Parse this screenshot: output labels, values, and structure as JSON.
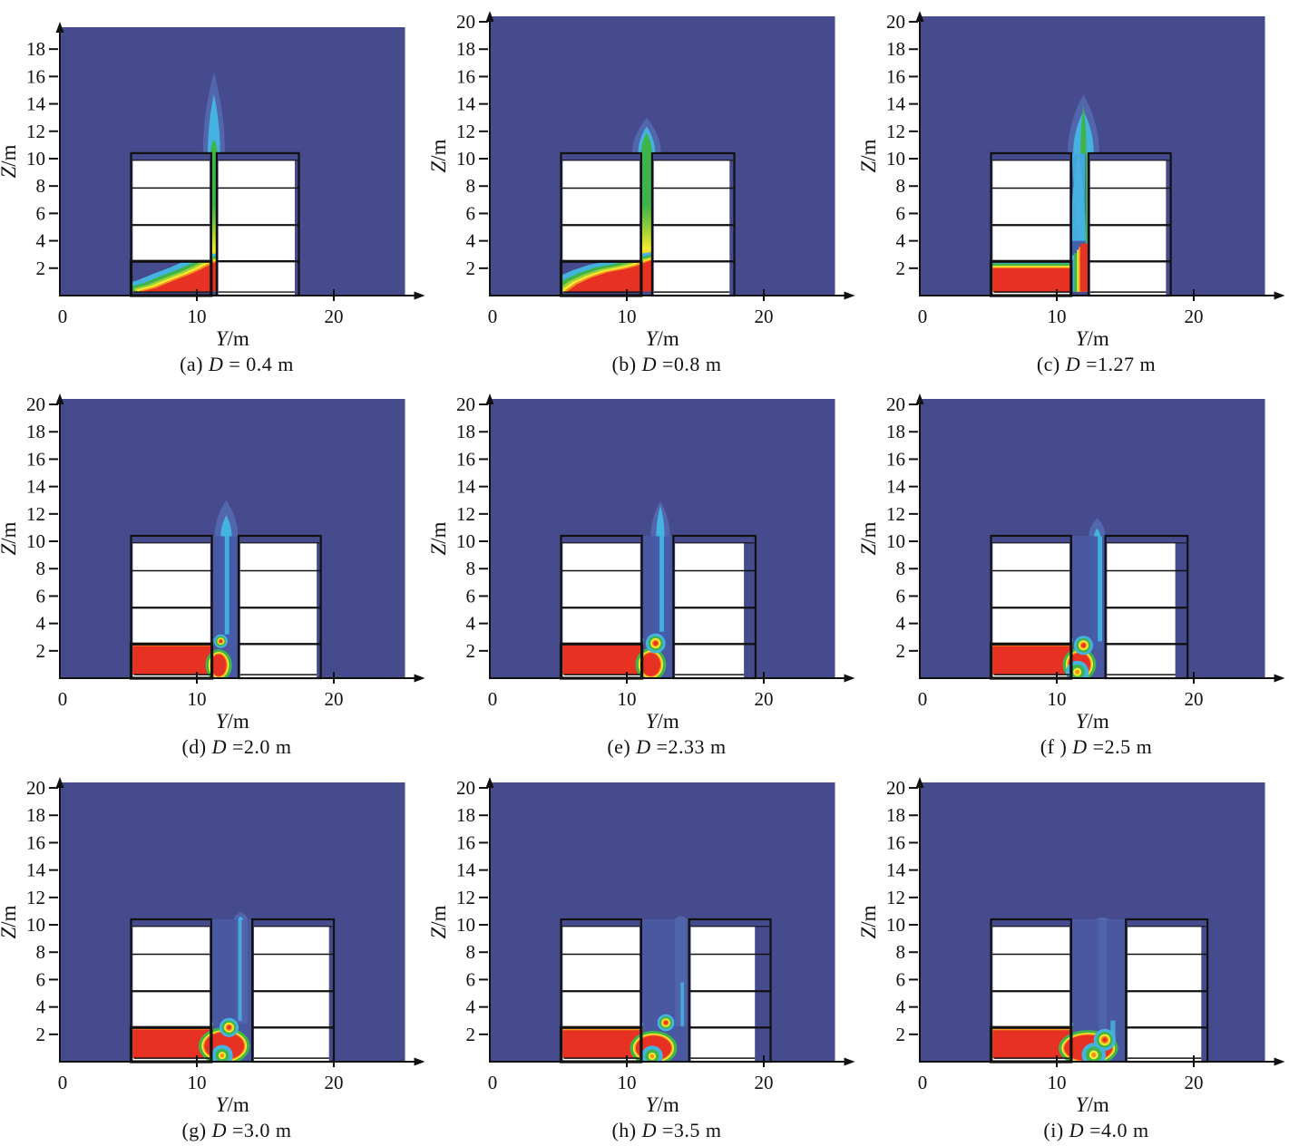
{
  "figure": {
    "background": "#ffffff",
    "rows": 3,
    "cols": 3
  },
  "colors": {
    "navy": "#454b8d",
    "canyonBlue": "#4a58a2",
    "blue": "#3f62b0",
    "haloBlue": "#5166ad",
    "cyan": "#45b3e2",
    "lightcyan": "#83cdea",
    "green": "#3fb44a",
    "ygreen": "#9ccf3a",
    "yellow": "#f5ea2d",
    "orange": "#f3921f",
    "red": "#e73122",
    "white": "#ffffff",
    "ink": "#111111"
  },
  "axes": {
    "x_var": "Y",
    "x_unit": "/m",
    "y_var": "Z",
    "y_unit": "/m"
  },
  "chart_data": {
    "type": "contour",
    "description": "Temperature/smoke contour slices of fire spread between two buildings for varying street-canyon width D; fire room at lower-left, buoyant plume rises through the canyon gap.",
    "common": {
      "xmax": 25.2,
      "x_ticks": [
        0,
        10,
        20
      ],
      "bldg": {
        "left": 5.2,
        "roof": 10.4,
        "ceil": 9.88,
        "floors": [
          2.5,
          5.15,
          7.85
        ],
        "fire_room_top": 2.5,
        "ground": 0.26
      }
    },
    "panels": [
      {
        "key": "a",
        "caption": [
          "(a) ",
          "D",
          " = 0.4 m"
        ],
        "D_m": 0.4,
        "ymax": 19.6,
        "y_ticks": [
          2,
          4,
          6,
          8,
          10,
          12,
          14,
          16,
          18
        ],
        "canyon": [
          11.05,
          11.45
        ],
        "right": 17.45,
        "inset_r": 0.3,
        "fire": {
          "shape": "diag",
          "canyon_red_top": 2.5,
          "interface": [
            [
              6.0,
              0.3
            ],
            [
              7.0,
              0.55
            ],
            [
              8.2,
              1.05
            ],
            [
              9.4,
              1.5
            ],
            [
              10.3,
              1.9
            ],
            [
              10.85,
              2.2
            ],
            [
              11.05,
              2.3
            ]
          ]
        },
        "canyon_plume": {
          "style": "jet"
        },
        "roof_plume": {
          "cx": 11.25,
          "layers": [
            [
              0.8,
              16.3,
              "haloBlue"
            ],
            [
              0.45,
              14.7,
              "cyan"
            ],
            [
              0.26,
              11.4,
              "green"
            ]
          ]
        }
      },
      {
        "key": "b",
        "caption": [
          "(b) ",
          "D",
          " =0.8 m"
        ],
        "D_m": 0.8,
        "ymax": 20.4,
        "y_ticks": [
          2,
          4,
          6,
          8,
          10,
          12,
          14,
          16,
          18,
          20
        ],
        "canyon": [
          11.05,
          11.85
        ],
        "right": 17.85,
        "inset_r": 0.35,
        "fire": {
          "shape": "diag",
          "canyon_red_top": 2.6,
          "interface": [
            [
              5.7,
              0.35
            ],
            [
              6.4,
              0.85
            ],
            [
              7.4,
              1.3
            ],
            [
              8.6,
              1.7
            ],
            [
              9.9,
              1.95
            ],
            [
              10.7,
              2.15
            ],
            [
              11.05,
              2.3
            ]
          ]
        },
        "canyon_plume": {
          "style": "jet"
        },
        "roof_plume": {
          "cx": 11.45,
          "layers": [
            [
              1.05,
              13.0,
              "haloBlue"
            ],
            [
              0.62,
              12.35,
              "cyan"
            ],
            [
              0.4,
              11.9,
              "green"
            ]
          ]
        }
      },
      {
        "key": "c",
        "caption": [
          "(c) ",
          "D",
          " =1.27 m"
        ],
        "D_m": 1.27,
        "ymax": 20.4,
        "y_ticks": [
          2,
          4,
          6,
          8,
          10,
          12,
          14,
          16,
          18,
          20
        ],
        "canyon": [
          11.05,
          12.32
        ],
        "right": 18.32,
        "inset_r": 0.35,
        "fire": {
          "shape": "flat",
          "top": 2.0,
          "canyon_fill": true,
          "hbands": [
            [
              "orange",
              2.2
            ],
            [
              "yellow",
              2.4
            ],
            [
              "green",
              2.65
            ],
            [
              "cyan",
              2.95
            ]
          ],
          "wall_col": {
            "right": 12.32,
            "bands": [
              [
                "cyan",
                11.1,
                2.85
              ],
              [
                "green",
                11.28,
                3.1
              ],
              [
                "yellow",
                11.48,
                3.35
              ],
              [
                "orange",
                11.6,
                3.55
              ],
              [
                "red",
                11.72,
                3.8
              ]
            ]
          }
        },
        "canyon_plume": {
          "style": "walljet",
          "streak_cx": 11.55,
          "streak_zb": 4.0
        },
        "roof_plume": {
          "cx": 11.95,
          "layers": [
            [
              1.15,
              14.7,
              "haloBlue"
            ],
            [
              0.75,
              13.5,
              "cyan"
            ],
            [
              0.22,
              13.9,
              "green"
            ]
          ]
        }
      },
      {
        "key": "d",
        "caption": [
          "(d) ",
          "D",
          " =2.0 m"
        ],
        "D_m": 2.0,
        "ymax": 20.4,
        "y_ticks": [
          2,
          4,
          6,
          8,
          10,
          12,
          14,
          16,
          18,
          20
        ],
        "canyon": [
          11.1,
          13.05
        ],
        "right": 19.05,
        "inset_r": 0.3,
        "fire": {
          "shape": "flat",
          "top": 2.35
        },
        "tongue": {
          "x": 11.6,
          "z": 0.95,
          "rx": 0.55,
          "ry": 0.8
        },
        "swirl": {
          "x": 11.75,
          "z": 2.7,
          "r": 0.5
        },
        "canyon_plume": {
          "style": "weak",
          "cx": 12.2,
          "zb": 3.2
        },
        "roof_plume": {
          "cx": 12.15,
          "layers": [
            [
              0.85,
              13.0,
              "haloBlue"
            ],
            [
              0.4,
              11.9,
              "cyan"
            ]
          ]
        }
      },
      {
        "key": "e",
        "caption": [
          "(e) ",
          "D",
          " =2.33 m"
        ],
        "D_m": 2.33,
        "ymax": 20.4,
        "y_ticks": [
          2,
          4,
          6,
          8,
          10,
          12,
          14,
          16,
          18,
          20
        ],
        "canyon": [
          11.1,
          13.4
        ],
        "right": 19.4,
        "inset_r": 0.85,
        "fire": {
          "shape": "flat",
          "top": 2.4
        },
        "tongue": {
          "x": 11.75,
          "z": 1.0,
          "rx": 0.7,
          "ry": 0.85
        },
        "swirl": {
          "x": 12.1,
          "z": 2.55,
          "r": 0.72
        },
        "canyon_plume": {
          "style": "weak",
          "cx": 12.55,
          "zb": 3.4
        },
        "roof_plume": {
          "cx": 12.45,
          "layers": [
            [
              0.7,
              12.9,
              "haloBlue"
            ],
            [
              0.3,
              12.6,
              "cyan"
            ]
          ]
        }
      },
      {
        "key": "f",
        "caption": [
          "(f ) ",
          "D",
          " =2.5 m"
        ],
        "D_m": 2.5,
        "ymax": 20.4,
        "y_ticks": [
          2,
          4,
          6,
          8,
          10,
          12,
          14,
          16,
          18,
          20
        ],
        "canyon": [
          11.05,
          13.55
        ],
        "right": 19.55,
        "inset_r": 0.9,
        "fire": {
          "shape": "flat",
          "top": 2.35
        },
        "tongue": {
          "x": 11.65,
          "z": 1.0,
          "rx": 0.8,
          "ry": 0.85
        },
        "swirl": {
          "x": 11.95,
          "z": 2.4,
          "r": 0.7
        },
        "bottom_blob": {
          "x": 11.5,
          "z": 0.45,
          "r": 0.55
        },
        "canyon_plume": {
          "style": "weak",
          "cx": 13.15,
          "zb": 2.7
        },
        "roof_plume": {
          "cx": 12.95,
          "layers": [
            [
              0.6,
              11.7,
              "haloBlue"
            ],
            [
              0.22,
              10.95,
              "cyan"
            ]
          ]
        }
      },
      {
        "key": "g",
        "caption": [
          "(g) ",
          "D",
          " =3.0 m"
        ],
        "D_m": 3.0,
        "ymax": 20.4,
        "y_ticks": [
          2,
          4,
          6,
          8,
          10,
          12,
          14,
          16,
          18,
          20
        ],
        "canyon": [
          11.05,
          14.05
        ],
        "right": 20.0,
        "inset_r": 0.35,
        "fire": {
          "shape": "flat",
          "top": 2.35
        },
        "tongue": {
          "x": 12.0,
          "z": 1.15,
          "rx": 1.45,
          "ry": 1.0
        },
        "swirl": {
          "x": 12.35,
          "z": 2.5,
          "r": 0.7
        },
        "bottom_blob": {
          "x": 11.85,
          "z": 0.45,
          "r": 0.5
        },
        "canyon_plume": {
          "style": "bottom",
          "streaks": [
            [
              13.3,
              2.8,
              10.4,
              0.8,
              "haloBlue"
            ],
            [
              13.15,
              3.0,
              10.4,
              0.26,
              "cyan"
            ]
          ]
        },
        "roof_plume": {
          "cx": 13.2,
          "layers": [
            [
              0.5,
              10.95,
              "haloBlue"
            ],
            [
              0.18,
              10.6,
              "cyan"
            ]
          ]
        }
      },
      {
        "key": "h",
        "caption": [
          "(h) ",
          "D",
          " =3.5 m"
        ],
        "D_m": 3.5,
        "ymax": 20.4,
        "y_ticks": [
          2,
          4,
          6,
          8,
          10,
          12,
          14,
          16,
          18,
          20
        ],
        "canyon": [
          11.05,
          14.55
        ],
        "right": 20.5,
        "inset_r": 1.15,
        "fire": {
          "shape": "flat",
          "top": 2.3
        },
        "tongue": {
          "x": 11.95,
          "z": 1.0,
          "rx": 1.3,
          "ry": 0.9
        },
        "swirl": {
          "x": 12.85,
          "z": 2.85,
          "r": 0.62
        },
        "bottom_blob": {
          "x": 11.85,
          "z": 0.4,
          "r": 0.5
        },
        "canyon_plume": {
          "style": "bottom",
          "streaks": [
            [
              13.95,
              2.6,
              10.4,
              0.85,
              "haloBlue"
            ],
            [
              14.05,
              2.6,
              5.8,
              0.24,
              "cyan"
            ]
          ]
        },
        "roof_plume": {
          "cx": 13.95,
          "layers": [
            [
              0.45,
              10.65,
              "haloBlue"
            ]
          ]
        }
      },
      {
        "key": "i",
        "caption": [
          "(i) ",
          "D",
          " =4.0 m"
        ],
        "D_m": 4.0,
        "ymax": 20.4,
        "y_ticks": [
          2,
          4,
          6,
          8,
          10,
          12,
          14,
          16,
          18,
          20
        ],
        "canyon": [
          11.05,
          15.05
        ],
        "right": 21.0,
        "inset_r": 0.45,
        "fire": {
          "shape": "flat",
          "top": 2.3
        },
        "tongue": {
          "x": 12.3,
          "z": 1.0,
          "rx": 1.75,
          "ry": 0.95
        },
        "swirl": {
          "x": 13.5,
          "z": 1.6,
          "r": 0.8
        },
        "bottom_blob": {
          "x": 12.7,
          "z": 0.5,
          "r": 0.6
        },
        "canyon_plume": {
          "style": "bottom",
          "streaks": [
            [
              13.35,
              2.4,
              10.4,
              0.6,
              "haloBlue"
            ],
            [
              14.1,
              1.4,
              3.0,
              0.35,
              "cyan"
            ]
          ]
        },
        "roof_plume": {
          "cx": 13.35,
          "layers": [
            [
              0.5,
              10.55,
              "haloBlue"
            ]
          ]
        }
      }
    ]
  }
}
